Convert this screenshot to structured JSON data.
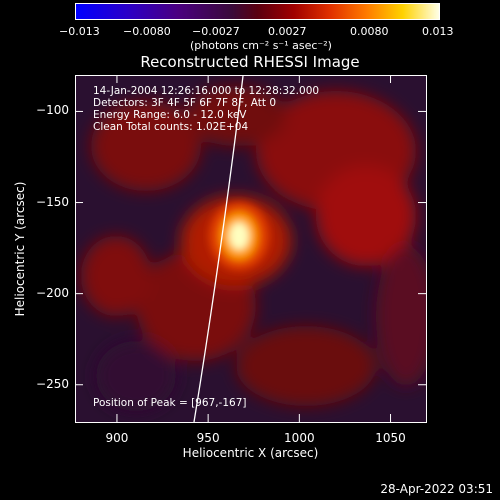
{
  "colorbar": {
    "ticks": [
      "−0.013",
      "−0.0080",
      "−0.0027",
      "0.0027",
      "0.0080",
      "0.013"
    ],
    "units": "(photons cm⁻² s⁻¹ asec⁻²)"
  },
  "chart_data": {
    "type": "heatmap",
    "title": "Reconstructed RHESSI Image",
    "xlabel": "Heliocentric X (arcsec)",
    "ylabel": "Heliocentric Y (arcsec)",
    "xlim": [
      877,
      1070
    ],
    "ylim": [
      -271,
      -80
    ],
    "x_ticks": [
      900,
      950,
      1000,
      1050
    ],
    "y_ticks": [
      -100,
      -150,
      -200,
      -250
    ],
    "x_tick_labels": [
      "900",
      "950",
      "1000",
      "1050"
    ],
    "y_tick_labels": [
      "−100",
      "−150",
      "−200",
      "−250"
    ],
    "colorbar_range": [
      -0.013,
      0.013
    ],
    "peak": {
      "x": 967,
      "y": -167
    },
    "colors": {
      "peak": "#ffffe0",
      "hot": "#ff8c00",
      "warm": "#b40000",
      "negative": "#3a1a5a"
    }
  },
  "annotations": {
    "time": "14-Jan-2004 12:26:16.000 to 12:28:32.000",
    "detectors": "Detectors: 3F 4F 5F 6F 7F 8F, Att 0",
    "energy": "Energy Range: 6.0 - 12.0 keV",
    "method": "Clean     Total counts: 1.02E+04",
    "peak": "Position of Peak = [967,-167]"
  },
  "footer": {
    "date": "28-Apr-2022 03:51"
  }
}
